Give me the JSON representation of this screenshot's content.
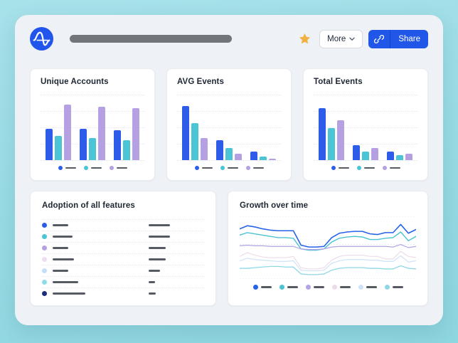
{
  "topbar": {
    "more_label": "More",
    "share_label": "Share"
  },
  "icons": {
    "logo": "amplitude-logo",
    "favorite": "star-icon",
    "more_chevron": "chevron-down-icon",
    "share": "link-icon"
  },
  "palette": {
    "page_bg": "#9adce5",
    "surface": "#eef1f6",
    "card_bg": "#ffffff",
    "title_placeholder": "#717479",
    "star": "#f1b243",
    "share_bg": "#2157e8",
    "dash": "#565b63",
    "title_text": "#1d2733"
  },
  "cards": {
    "unique_accounts": {
      "title": "Unique Accounts",
      "chart": {
        "type": "bar",
        "colors": [
          "#2d5de8",
          "#49c5d5",
          "#b5a1e2"
        ],
        "groups": [
          [
            48,
            37,
            85
          ],
          [
            48,
            34,
            82
          ],
          [
            46,
            30,
            79
          ]
        ],
        "legend_colors": [
          "#2d5de8",
          "#49c5d5",
          "#b5a1e2"
        ]
      }
    },
    "avg_events": {
      "title": "AVG Events",
      "chart": {
        "type": "bar",
        "colors": [
          "#2d5de8",
          "#49c5d5",
          "#b5a1e2"
        ],
        "groups": [
          [
            83,
            57,
            34
          ],
          [
            30,
            18,
            10
          ],
          [
            13,
            5,
            2
          ]
        ],
        "legend_colors": [
          "#2d5de8",
          "#49c5d5",
          "#b5a1e2"
        ]
      }
    },
    "total_events": {
      "title": "Total Events",
      "chart": {
        "type": "bar",
        "colors": [
          "#2d5de8",
          "#49c5d5",
          "#b5a1e2"
        ],
        "groups": [
          [
            79,
            49,
            61
          ],
          [
            23,
            13,
            18
          ],
          [
            13,
            8,
            10
          ]
        ],
        "legend_colors": [
          "#2d5de8",
          "#49c5d5",
          "#b5a1e2"
        ]
      }
    },
    "adoption": {
      "title": "Adoption of all features",
      "rows": [
        {
          "dot": "#2d5de8",
          "label_w": 22,
          "value_w": 30
        },
        {
          "dot": "#49c5d5",
          "label_w": 28,
          "value_w": 30
        },
        {
          "dot": "#b5a1e2",
          "label_w": 22,
          "value_w": 24
        },
        {
          "dot": "#eedcf0",
          "label_w": 30,
          "value_w": 24
        },
        {
          "dot": "#c4ddf8",
          "label_w": 22,
          "value_w": 16
        },
        {
          "dot": "#8fdbe9",
          "label_w": 36,
          "value_w": 9
        },
        {
          "dot": "#1b2d7d",
          "label_w": 46,
          "value_w": 10
        }
      ]
    },
    "growth": {
      "title": "Growth over time",
      "chart": {
        "type": "line",
        "gridlines": [
          0,
          45,
          100
        ],
        "series": [
          {
            "color": "#2563eb",
            "width": 1.6,
            "values": [
              20,
              15,
              17,
              20,
              22,
              23,
              23,
              23,
              46,
              49,
              49,
              48,
              34,
              27,
              25,
              24,
              24,
              28,
              29,
              26,
              26,
              13,
              27,
              21
            ]
          },
          {
            "color": "#4cc3d2",
            "width": 1.4,
            "values": [
              30,
              26,
              28,
              30,
              32,
              34,
              34,
              35,
              52,
              54,
              54,
              52,
              41,
              35,
              33,
              32,
              33,
              37,
              37,
              35,
              34,
              25,
              39,
              32
            ]
          },
          {
            "color": "#b3a4e6",
            "width": 1.2,
            "values": [
              47,
              46,
              47,
              47,
              48,
              48,
              48,
              48,
              52,
              53,
              53,
              52,
              49,
              48,
              48,
              48,
              48,
              48,
              48,
              48,
              49,
              45,
              50,
              48
            ]
          },
          {
            "color": "#ecdcea",
            "width": 1.2,
            "values": [
              64,
              58,
              62,
              65,
              66,
              66,
              66,
              64,
              82,
              84,
              84,
              82,
              70,
              64,
              62,
              62,
              62,
              64,
              64,
              68,
              68,
              56,
              64,
              66
            ]
          },
          {
            "color": "#cfe2f7",
            "width": 1.2,
            "values": [
              71,
              67,
              69,
              70,
              71,
              72,
              72,
              71,
              86,
              87,
              87,
              86,
              75,
              71,
              69,
              69,
              69,
              70,
              70,
              72,
              72,
              63,
              73,
              71
            ]
          },
          {
            "color": "#8ed8e6",
            "width": 1.3,
            "values": [
              83,
              83,
              82,
              81,
              80,
              80,
              81,
              81,
              92,
              93,
              93,
              92,
              86,
              83,
              82,
              82,
              82,
              83,
              83,
              84,
              84,
              79,
              83,
              84
            ]
          }
        ],
        "legend_colors": [
          "#2563eb",
          "#4cc3d2",
          "#b3a4e6",
          "#ecdcea",
          "#cfe2f7",
          "#8ed8e6"
        ]
      }
    }
  }
}
